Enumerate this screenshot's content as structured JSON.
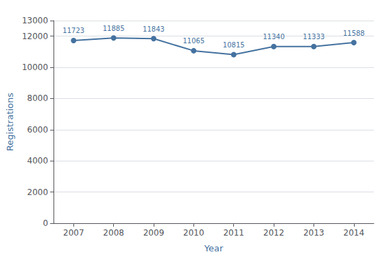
{
  "chart_data": {
    "type": "line",
    "x": [
      2007,
      2008,
      2009,
      2010,
      2011,
      2012,
      2013,
      2014
    ],
    "values": [
      11723,
      11885,
      11843,
      11065,
      10815,
      11340,
      11333,
      11588
    ],
    "xlabel": "Year",
    "ylabel": "Registrations",
    "xlim": [
      2006.5,
      2014.5
    ],
    "xticks": [
      2007,
      2008,
      2009,
      2010,
      2011,
      2012,
      2013,
      2014
    ],
    "ylim": [
      0,
      13000
    ],
    "yticks": [
      0,
      2000,
      4000,
      6000,
      8000,
      10000,
      12000
    ],
    "color": "#4472a0",
    "marker": "circle",
    "grid": true,
    "data_labels": true
  }
}
